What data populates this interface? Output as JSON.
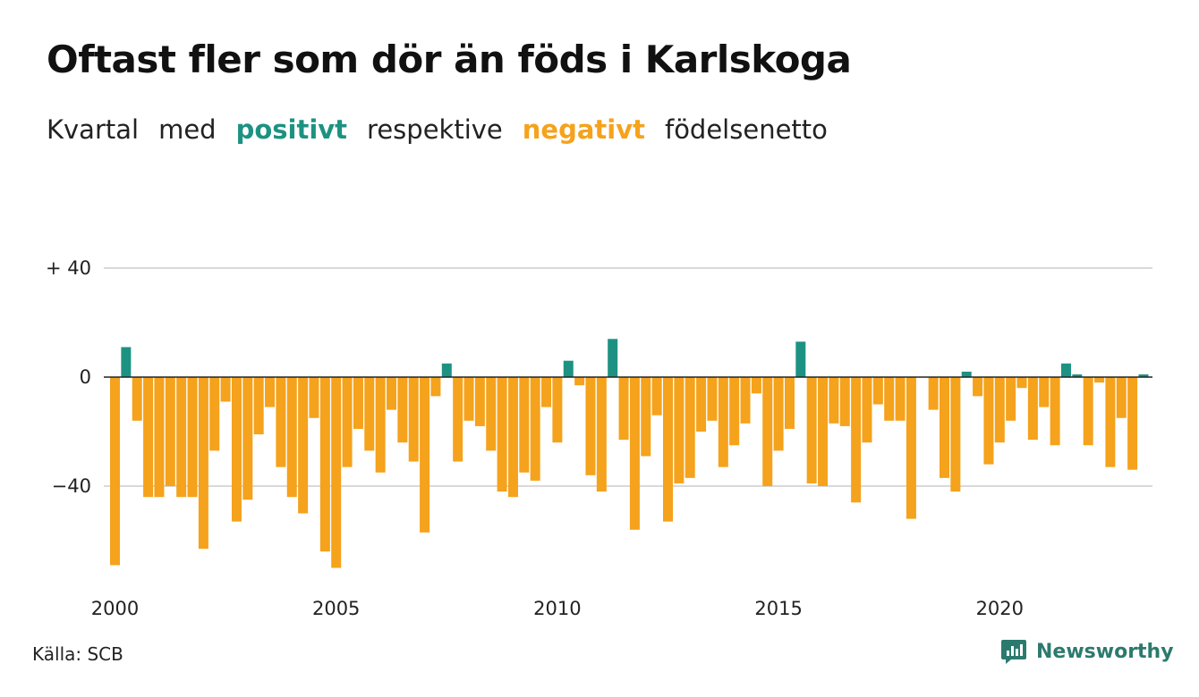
{
  "title": "Oftast fler som dör än föds i Karlskoga",
  "subtitle": {
    "part1": "Kvartal",
    "part2": "med",
    "positive": "positivt",
    "part3": "respektive",
    "negative": "negativt",
    "part4": "födelsenetto"
  },
  "source": "Källa: SCB",
  "brand": "Newsworthy",
  "colors": {
    "positive": "#1d9282",
    "negative": "#f5a21c",
    "grid": "#d9d9d9",
    "zero": "#222222"
  },
  "chart_data": {
    "type": "bar",
    "x_start": "2000 Q1",
    "frequency": "quarterly",
    "y_ticks": [
      40,
      0,
      -40
    ],
    "y_tick_labels": [
      "+ 40",
      "0",
      "−40"
    ],
    "x_tick_labels": [
      "2000",
      "2005",
      "2010",
      "2015",
      "2020"
    ],
    "ylim": [
      -72,
      42
    ],
    "values": [
      -69,
      11,
      -16,
      -44,
      -44,
      -40,
      -44,
      -44,
      -63,
      -27,
      -9,
      -53,
      -45,
      -21,
      -11,
      -33,
      -44,
      -50,
      -15,
      -64,
      -70,
      -33,
      -19,
      -27,
      -35,
      -12,
      -24,
      -31,
      -57,
      -7,
      5,
      -31,
      -16,
      -18,
      -27,
      -42,
      -44,
      -35,
      -38,
      -11,
      -24,
      6,
      -3,
      -36,
      -42,
      14,
      -23,
      -56,
      -29,
      -14,
      -53,
      -39,
      -37,
      -20,
      -16,
      -33,
      -25,
      -17,
      -6,
      -40,
      -27,
      -19,
      13,
      -39,
      -40,
      -17,
      -18,
      -46,
      -24,
      -10,
      -16,
      -16,
      -52,
      0,
      -12,
      -37,
      -42,
      2,
      -7,
      -32,
      -24,
      -16,
      -4,
      -23,
      -11,
      -25,
      5,
      1,
      -25,
      -2,
      -33,
      -15,
      -34,
      1
    ]
  }
}
